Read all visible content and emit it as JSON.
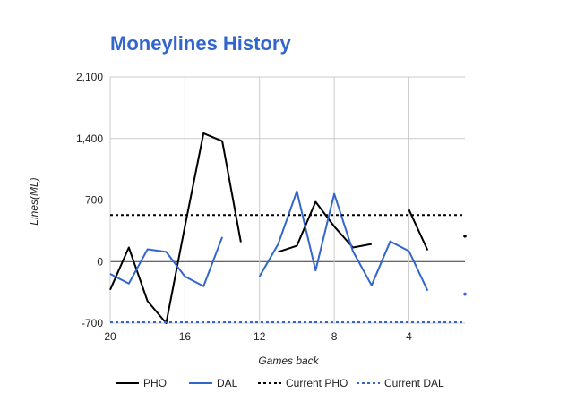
{
  "chart_data": {
    "type": "line",
    "title": "Moneylines History",
    "xlabel": "Games back",
    "ylabel": "Lines(ML)",
    "x_reversed": true,
    "xlim": [
      20,
      1
    ],
    "ylim": [
      -700,
      2100
    ],
    "x_ticks": [
      20,
      16,
      12,
      8,
      4
    ],
    "y_ticks": [
      -700,
      0,
      700,
      1400,
      2100
    ],
    "y_tick_labels": [
      "-700",
      "0",
      "700",
      "1,400",
      "2,100"
    ],
    "grid": true,
    "legend_position": "bottom",
    "series": [
      {
        "name": "PHO",
        "color": "#000000",
        "style": "solid",
        "x": [
          20,
          19,
          18,
          17,
          16,
          15,
          14,
          13,
          12,
          11,
          10,
          9,
          8,
          7,
          6,
          5,
          4,
          3,
          2,
          1
        ],
        "values": [
          -320,
          160,
          -450,
          -700,
          400,
          1460,
          1370,
          220,
          null,
          110,
          180,
          680,
          400,
          160,
          200,
          null,
          590,
          130,
          null,
          290
        ]
      },
      {
        "name": "DAL",
        "color": "#3366cc",
        "style": "solid",
        "x": [
          20,
          19,
          18,
          17,
          16,
          15,
          14,
          13,
          12,
          11,
          10,
          9,
          8,
          7,
          6,
          5,
          4,
          3,
          2,
          1
        ],
        "values": [
          -140,
          -250,
          140,
          110,
          -170,
          -280,
          280,
          null,
          -170,
          200,
          800,
          -100,
          770,
          120,
          -270,
          230,
          120,
          -330,
          null,
          -370
        ]
      },
      {
        "name": "Current PHO",
        "color": "#000000",
        "style": "dashed",
        "constant": 530
      },
      {
        "name": "Current DAL",
        "color": "#3366cc",
        "style": "dashed",
        "constant": -690
      }
    ]
  }
}
